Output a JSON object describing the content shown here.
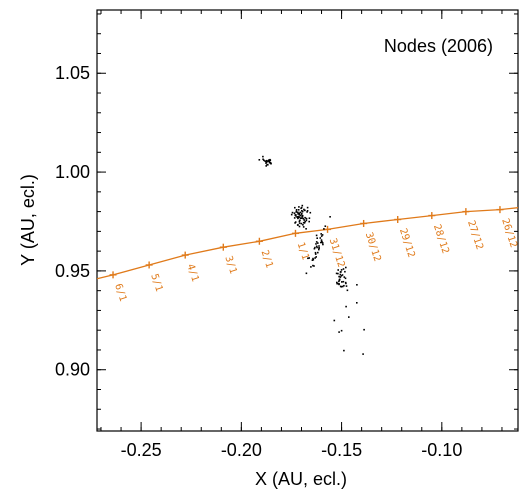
{
  "chart_data": {
    "type": "scatter",
    "title": "Nodes (2006)",
    "xlabel": "X (AU, ecl.)",
    "ylabel": "Y (AU, ecl.)",
    "xlim": [
      -0.272,
      -0.062
    ],
    "ylim": [
      0.869,
      1.082
    ],
    "x_ticks": [
      -0.25,
      -0.2,
      -0.15,
      -0.1
    ],
    "x_tick_labels": [
      "-0.25",
      "-0.20",
      "-0.15",
      "-0.10"
    ],
    "y_ticks": [
      0.9,
      0.95,
      1.0,
      1.05
    ],
    "y_tick_labels": [
      "0.90",
      "0.95",
      "1.00",
      "1.05"
    ],
    "grid": false,
    "orbit_color": "#e07a1a",
    "node_color": "#000000",
    "orbit": {
      "points": [
        {
          "x": -0.264,
          "y": 0.948,
          "date": "6/1"
        },
        {
          "x": -0.246,
          "y": 0.953,
          "date": "5/1"
        },
        {
          "x": -0.228,
          "y": 0.958,
          "date": "4/1"
        },
        {
          "x": -0.209,
          "y": 0.962,
          "date": "3/1"
        },
        {
          "x": -0.191,
          "y": 0.965,
          "date": "2/1"
        },
        {
          "x": -0.173,
          "y": 0.969,
          "date": "1/1"
        },
        {
          "x": -0.157,
          "y": 0.971,
          "date": "31/12"
        },
        {
          "x": -0.139,
          "y": 0.974,
          "date": "30/12"
        },
        {
          "x": -0.122,
          "y": 0.976,
          "date": "29/12"
        },
        {
          "x": -0.105,
          "y": 0.978,
          "date": "28/12"
        },
        {
          "x": -0.088,
          "y": 0.98,
          "date": "27/12"
        },
        {
          "x": -0.071,
          "y": 0.981,
          "date": "26/12"
        }
      ],
      "curve_start": {
        "x": -0.272,
        "y": 0.946
      },
      "curve_end": {
        "x": -0.062,
        "y": 0.982
      }
    },
    "node_groups": [
      {
        "cx": -0.1875,
        "cy": 1.0055,
        "sx": 0.0015,
        "sy": 0.0012,
        "n": 22
      },
      {
        "cx": -0.171,
        "cy": 0.978,
        "sx": 0.0022,
        "sy": 0.0025,
        "n": 70
      },
      {
        "cx": -0.162,
        "cy": 0.963,
        "sx": 0.003,
        "sy": 0.004,
        "n": 40,
        "tilt": -1.6
      },
      {
        "cx": -0.15,
        "cy": 0.946,
        "sx": 0.0016,
        "sy": 0.0025,
        "n": 35
      },
      {
        "cx": -0.146,
        "cy": 0.915,
        "sx": 0.006,
        "sy": 0.014,
        "n": 10
      }
    ]
  }
}
